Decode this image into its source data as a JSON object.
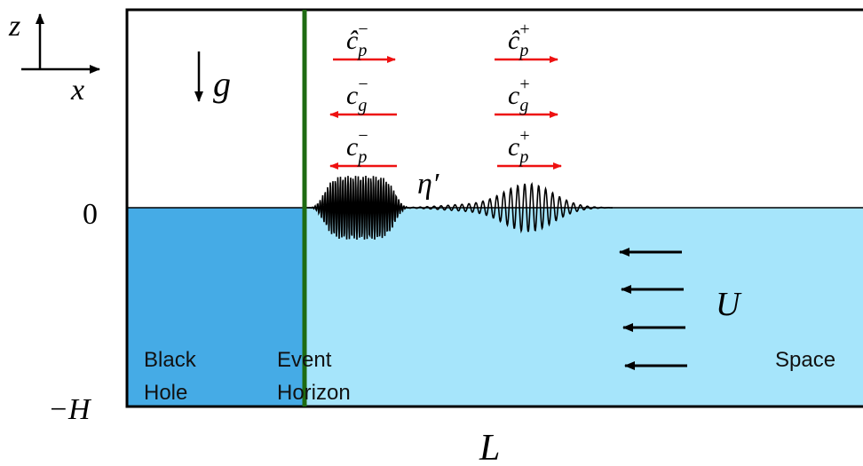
{
  "axes": {
    "z": "z",
    "x": "x"
  },
  "gravity": "g",
  "levels": {
    "surface": "0",
    "bottom": "−H"
  },
  "length": "L",
  "current": "U",
  "eta": "η′",
  "velocities": {
    "left": [
      {
        "symbol": "ĉ",
        "sub": "p",
        "sup": "−"
      },
      {
        "symbol": "c",
        "sub": "g",
        "sup": "−"
      },
      {
        "symbol": "c",
        "sub": "p",
        "sup": "−"
      }
    ],
    "right": [
      {
        "symbol": "ĉ",
        "sub": "p",
        "sup": "+"
      },
      {
        "symbol": "c",
        "sub": "g",
        "sup": "+"
      },
      {
        "symbol": "c",
        "sub": "p",
        "sup": "+"
      }
    ]
  },
  "regions": {
    "black_hole": [
      "Black",
      "Hole"
    ],
    "horizon": [
      "Event",
      "Horizon"
    ],
    "space": "Space"
  }
}
